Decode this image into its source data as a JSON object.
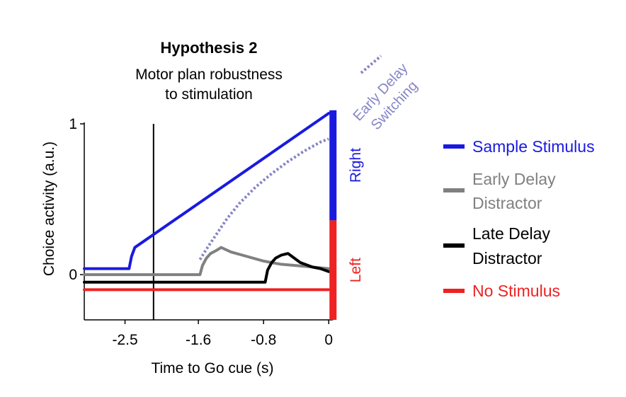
{
  "chart_data": {
    "type": "line",
    "title": "Hypothesis 2",
    "subtitle_lines": [
      "Motor plan robustness",
      "to stimulation"
    ],
    "xlabel": "Time to Go cue (s)",
    "ylabel": "Choice activity (a.u.)",
    "xlim": [
      -3.0,
      0.05
    ],
    "ylim": [
      -0.3,
      1.0
    ],
    "x_ticks": [
      -2.5,
      -1.6,
      -0.8,
      0
    ],
    "x_tick_labels": [
      "-2.5",
      "-1.6",
      "-0.8",
      "0"
    ],
    "y_ticks": [
      0,
      1
    ],
    "y_tick_labels": [
      "0",
      "1"
    ],
    "vline_x": -2.15,
    "legend_position": "right",
    "right_bar": [
      {
        "label": "Right",
        "from": 0.36,
        "to": 1.09,
        "color": "#1a1adf"
      },
      {
        "label": "Left",
        "from": -0.3,
        "to": 0.36,
        "color": "#ee2222"
      }
    ],
    "annotation": {
      "lines": [
        "Early Delay",
        "Switching"
      ],
      "color": "#8585c8"
    },
    "series": [
      {
        "name": "Sample Stimulus",
        "color": "#1a1adf",
        "x": [
          -3.0,
          -2.45,
          -2.42,
          -2.38,
          -2.3,
          0.0
        ],
        "y": [
          0.04,
          0.04,
          0.12,
          0.18,
          0.21,
          1.07
        ]
      },
      {
        "name": "Early Delay Distractor",
        "color": "#808080",
        "x": [
          -3.0,
          -1.58,
          -1.55,
          -1.5,
          -1.45,
          -1.38,
          -1.32,
          -1.2,
          -1.0,
          -0.8,
          -0.6,
          -0.4,
          -0.2,
          0.0
        ],
        "y": [
          0.0,
          0.0,
          0.06,
          0.11,
          0.14,
          0.16,
          0.18,
          0.15,
          0.12,
          0.09,
          0.07,
          0.06,
          0.05,
          0.04
        ]
      },
      {
        "name": "Late Delay Distractor",
        "color": "#000000",
        "x": [
          -3.0,
          -0.78,
          -0.75,
          -0.7,
          -0.65,
          -0.58,
          -0.5,
          -0.45,
          -0.35,
          -0.2,
          -0.1,
          0.0
        ],
        "y": [
          -0.05,
          -0.05,
          0.03,
          0.08,
          0.11,
          0.13,
          0.14,
          0.12,
          0.08,
          0.05,
          0.04,
          0.02
        ]
      },
      {
        "name": "No Stimulus",
        "color": "#ee2222",
        "x": [
          -3.0,
          0.0
        ],
        "y": [
          -0.1,
          -0.1
        ]
      },
      {
        "name": "Early Delay Switching",
        "color": "#8585c8",
        "dashed": true,
        "x": [
          -1.58,
          -1.5,
          -1.4,
          -1.25,
          -1.1,
          -0.9,
          -0.7,
          -0.5,
          -0.3,
          -0.1,
          0.0
        ],
        "y": [
          0.1,
          0.17,
          0.25,
          0.37,
          0.47,
          0.58,
          0.67,
          0.75,
          0.82,
          0.88,
          0.9
        ]
      }
    ],
    "legend": [
      {
        "lines": [
          "Sample Stimulus"
        ],
        "color": "#1a1adf",
        "text_color": "#1a1adf"
      },
      {
        "lines": [
          "Early Delay",
          "Distractor"
        ],
        "color": "#808080",
        "text_color": "#808080"
      },
      {
        "lines": [
          "Late Delay",
          "Distractor"
        ],
        "color": "#000000",
        "text_color": "#000000"
      },
      {
        "lines": [
          "No Stimulus"
        ],
        "color": "#ee2222",
        "text_color": "#ee2222"
      }
    ]
  }
}
